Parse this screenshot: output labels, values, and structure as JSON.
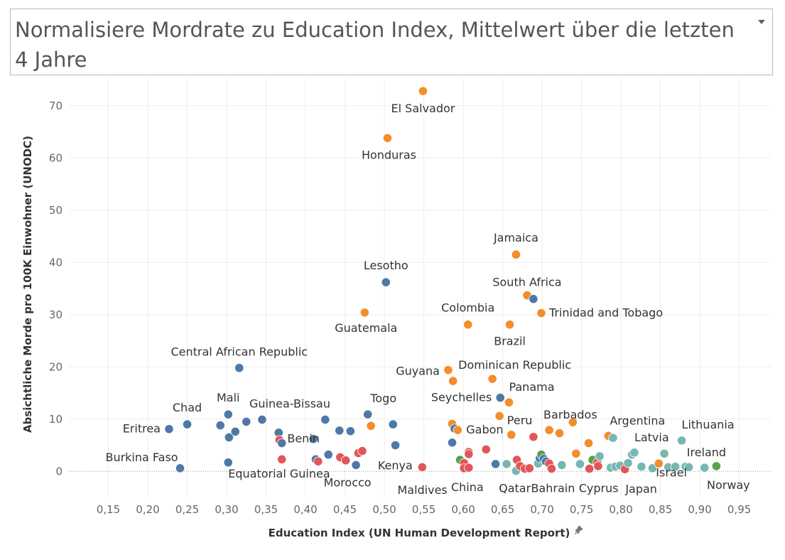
{
  "title": {
    "text": "Normalisiere Mordrate zu Education Index, Mittelwert über die letzten 4 Jahre",
    "menu_icon": "chevron-down-icon"
  },
  "colors": {
    "blue": "#4e79a7",
    "orange": "#f28e2b",
    "red": "#e15759",
    "green": "#59a14f",
    "teal": "#76b7b2"
  },
  "chart_data": {
    "type": "scatter",
    "xlabel": "Education Index (UN Human Development Report)",
    "ylabel": "Absichtliche Morde pro 100K Einwohner (UNODC)",
    "xlim": [
      0.1,
      0.99
    ],
    "ylim": [
      -5,
      75
    ],
    "x_ticks": [
      "0,15",
      "0,20",
      "0,25",
      "0,30",
      "0,35",
      "0,40",
      "0,45",
      "0,50",
      "0,55",
      "0,60",
      "0,65",
      "0,70",
      "0,75",
      "0,80",
      "0,85",
      "0,90",
      "0,95"
    ],
    "y_ticks": [
      "0",
      "10",
      "20",
      "30",
      "40",
      "50",
      "60",
      "70"
    ],
    "grid": true,
    "zero_line": "dotted",
    "axis_pin_icon": "pin-icon",
    "points": [
      {
        "x": 0.549,
        "y": 72.8,
        "c": "orange",
        "label": "El Salvador"
      },
      {
        "x": 0.504,
        "y": 63.8,
        "c": "orange",
        "label": "Honduras"
      },
      {
        "x": 0.667,
        "y": 41.5,
        "c": "orange",
        "label": "Jamaica"
      },
      {
        "x": 0.502,
        "y": 36.2,
        "c": "blue",
        "label": "Lesotho"
      },
      {
        "x": 0.681,
        "y": 33.7,
        "c": "orange",
        "label": "South Africa"
      },
      {
        "x": 0.689,
        "y": 33.0,
        "c": "blue"
      },
      {
        "x": 0.699,
        "y": 30.3,
        "c": "orange",
        "label": "Trinidad and Tobago"
      },
      {
        "x": 0.475,
        "y": 30.4,
        "c": "orange",
        "label": "Guatemala"
      },
      {
        "x": 0.606,
        "y": 28.1,
        "c": "orange",
        "label": "Colombia"
      },
      {
        "x": 0.659,
        "y": 28.1,
        "c": "orange",
        "label": "Brazil"
      },
      {
        "x": 0.316,
        "y": 19.8,
        "c": "blue",
        "label": "Central African Republic"
      },
      {
        "x": 0.581,
        "y": 19.4,
        "c": "orange",
        "label": "Guyana"
      },
      {
        "x": 0.587,
        "y": 17.3,
        "c": "orange"
      },
      {
        "x": 0.637,
        "y": 17.7,
        "c": "orange",
        "label": "Dominican Republic"
      },
      {
        "x": 0.647,
        "y": 14.1,
        "c": "blue",
        "label": "Seychelles"
      },
      {
        "x": 0.658,
        "y": 13.2,
        "c": "orange",
        "label": "Panama"
      },
      {
        "x": 0.227,
        "y": 8.1,
        "c": "blue",
        "label": "Eritrea"
      },
      {
        "x": 0.25,
        "y": 9.0,
        "c": "blue",
        "label": "Chad"
      },
      {
        "x": 0.241,
        "y": 0.6,
        "c": "blue",
        "label": "Burkina Faso"
      },
      {
        "x": 0.292,
        "y": 8.8,
        "c": "blue"
      },
      {
        "x": 0.302,
        "y": 10.9,
        "c": "blue",
        "label": "Mali"
      },
      {
        "x": 0.303,
        "y": 6.5,
        "c": "blue"
      },
      {
        "x": 0.311,
        "y": 7.6,
        "c": "blue"
      },
      {
        "x": 0.325,
        "y": 9.5,
        "c": "blue"
      },
      {
        "x": 0.302,
        "y": 1.7,
        "c": "blue",
        "label": "Equatorial Guinea"
      },
      {
        "x": 0.345,
        "y": 9.9,
        "c": "blue",
        "label": "Guinea-Bissau"
      },
      {
        "x": 0.366,
        "y": 7.4,
        "c": "blue"
      },
      {
        "x": 0.367,
        "y": 6.0,
        "c": "red"
      },
      {
        "x": 0.37,
        "y": 5.4,
        "c": "blue"
      },
      {
        "x": 0.37,
        "y": 2.3,
        "c": "red"
      },
      {
        "x": 0.41,
        "y": 6.2,
        "c": "blue",
        "label": "Benin"
      },
      {
        "x": 0.413,
        "y": 2.3,
        "c": "blue"
      },
      {
        "x": 0.416,
        "y": 1.9,
        "c": "red"
      },
      {
        "x": 0.425,
        "y": 9.9,
        "c": "blue"
      },
      {
        "x": 0.429,
        "y": 3.2,
        "c": "blue"
      },
      {
        "x": 0.443,
        "y": 7.8,
        "c": "blue"
      },
      {
        "x": 0.444,
        "y": 2.7,
        "c": "red"
      },
      {
        "x": 0.451,
        "y": 2.1,
        "c": "red"
      },
      {
        "x": 0.457,
        "y": 7.7,
        "c": "blue"
      },
      {
        "x": 0.464,
        "y": 1.2,
        "c": "blue",
        "label": "Morocco"
      },
      {
        "x": 0.467,
        "y": 3.5,
        "c": "red"
      },
      {
        "x": 0.472,
        "y": 3.9,
        "c": "red"
      },
      {
        "x": 0.479,
        "y": 10.9,
        "c": "blue",
        "label": "Togo"
      },
      {
        "x": 0.483,
        "y": 8.7,
        "c": "orange"
      },
      {
        "x": 0.511,
        "y": 9.0,
        "c": "blue"
      },
      {
        "x": 0.514,
        "y": 5.0,
        "c": "blue"
      },
      {
        "x": 0.548,
        "y": 0.8,
        "c": "red",
        "label": "Kenya"
      },
      {
        "x": 0.586,
        "y": 9.1,
        "c": "orange"
      },
      {
        "x": 0.589,
        "y": 8.2,
        "c": "blue"
      },
      {
        "x": 0.593,
        "y": 7.9,
        "c": "orange",
        "label": "Gabon"
      },
      {
        "x": 0.586,
        "y": 5.5,
        "c": "blue"
      },
      {
        "x": 0.596,
        "y": 2.2,
        "c": "green",
        "label": "Maldives"
      },
      {
        "x": 0.601,
        "y": 1.6,
        "c": "red"
      },
      {
        "x": 0.601,
        "y": 0.6,
        "c": "red"
      },
      {
        "x": 0.607,
        "y": 3.7,
        "c": "red"
      },
      {
        "x": 0.607,
        "y": 3.3,
        "c": "red"
      },
      {
        "x": 0.607,
        "y": 0.7,
        "c": "red",
        "label": "China"
      },
      {
        "x": 0.629,
        "y": 4.2,
        "c": "red"
      },
      {
        "x": 0.646,
        "y": 10.6,
        "c": "orange"
      },
      {
        "x": 0.641,
        "y": 1.4,
        "c": "blue"
      },
      {
        "x": 0.655,
        "y": 1.4,
        "c": "teal"
      },
      {
        "x": 0.661,
        "y": 7.0,
        "c": "orange",
        "label": "Peru"
      },
      {
        "x": 0.667,
        "y": 0.1,
        "c": "teal"
      },
      {
        "x": 0.668,
        "y": 2.2,
        "c": "red"
      },
      {
        "x": 0.672,
        "y": 1.0,
        "c": "red"
      },
      {
        "x": 0.678,
        "y": 0.5,
        "c": "red",
        "label": "Qatar"
      },
      {
        "x": 0.684,
        "y": 0.6,
        "c": "red"
      },
      {
        "x": 0.689,
        "y": 6.6,
        "c": "red"
      },
      {
        "x": 0.695,
        "y": 1.5,
        "c": "teal"
      },
      {
        "x": 0.697,
        "y": 2.5,
        "c": "blue"
      },
      {
        "x": 0.699,
        "y": 3.2,
        "c": "green"
      },
      {
        "x": 0.702,
        "y": 2.4,
        "c": "blue"
      },
      {
        "x": 0.705,
        "y": 1.9,
        "c": "blue"
      },
      {
        "x": 0.709,
        "y": 1.5,
        "c": "red"
      },
      {
        "x": 0.712,
        "y": 0.5,
        "c": "red",
        "label": "Bahrain"
      },
      {
        "x": 0.709,
        "y": 7.9,
        "c": "orange",
        "label": "Barbados"
      },
      {
        "x": 0.722,
        "y": 7.3,
        "c": "orange"
      },
      {
        "x": 0.725,
        "y": 1.2,
        "c": "teal"
      },
      {
        "x": 0.739,
        "y": 9.4,
        "c": "orange"
      },
      {
        "x": 0.743,
        "y": 3.4,
        "c": "orange"
      },
      {
        "x": 0.748,
        "y": 1.4,
        "c": "teal"
      },
      {
        "x": 0.759,
        "y": 5.4,
        "c": "orange"
      },
      {
        "x": 0.76,
        "y": 0.5,
        "c": "red",
        "label": "Cyprus"
      },
      {
        "x": 0.764,
        "y": 2.2,
        "c": "green"
      },
      {
        "x": 0.77,
        "y": 1.7,
        "c": "red"
      },
      {
        "x": 0.771,
        "y": 1.0,
        "c": "red"
      },
      {
        "x": 0.773,
        "y": 2.9,
        "c": "teal"
      },
      {
        "x": 0.784,
        "y": 6.8,
        "c": "orange",
        "label": "Argentina"
      },
      {
        "x": 0.79,
        "y": 6.4,
        "c": "teal"
      },
      {
        "x": 0.787,
        "y": 0.7,
        "c": "teal"
      },
      {
        "x": 0.793,
        "y": 0.9,
        "c": "teal"
      },
      {
        "x": 0.799,
        "y": 1.1,
        "c": "teal"
      },
      {
        "x": 0.805,
        "y": 0.4,
        "c": "red",
        "label": "Japan"
      },
      {
        "x": 0.809,
        "y": 1.6,
        "c": "teal"
      },
      {
        "x": 0.814,
        "y": 3.2,
        "c": "teal"
      },
      {
        "x": 0.817,
        "y": 3.6,
        "c": "teal",
        "label": "Latvia"
      },
      {
        "x": 0.826,
        "y": 0.9,
        "c": "teal"
      },
      {
        "x": 0.84,
        "y": 0.6,
        "c": "teal"
      },
      {
        "x": 0.848,
        "y": 1.5,
        "c": "orange"
      },
      {
        "x": 0.855,
        "y": 3.4,
        "c": "teal",
        "label": "Israel"
      },
      {
        "x": 0.86,
        "y": 0.8,
        "c": "teal"
      },
      {
        "x": 0.869,
        "y": 0.9,
        "c": "teal"
      },
      {
        "x": 0.877,
        "y": 5.9,
        "c": "teal",
        "label": "Lithuania"
      },
      {
        "x": 0.882,
        "y": 0.9,
        "c": "teal"
      },
      {
        "x": 0.886,
        "y": 0.8,
        "c": "teal"
      },
      {
        "x": 0.906,
        "y": 0.7,
        "c": "teal",
        "label": "Ireland"
      },
      {
        "x": 0.921,
        "y": 1.0,
        "c": "green",
        "label": "Norway"
      }
    ]
  }
}
